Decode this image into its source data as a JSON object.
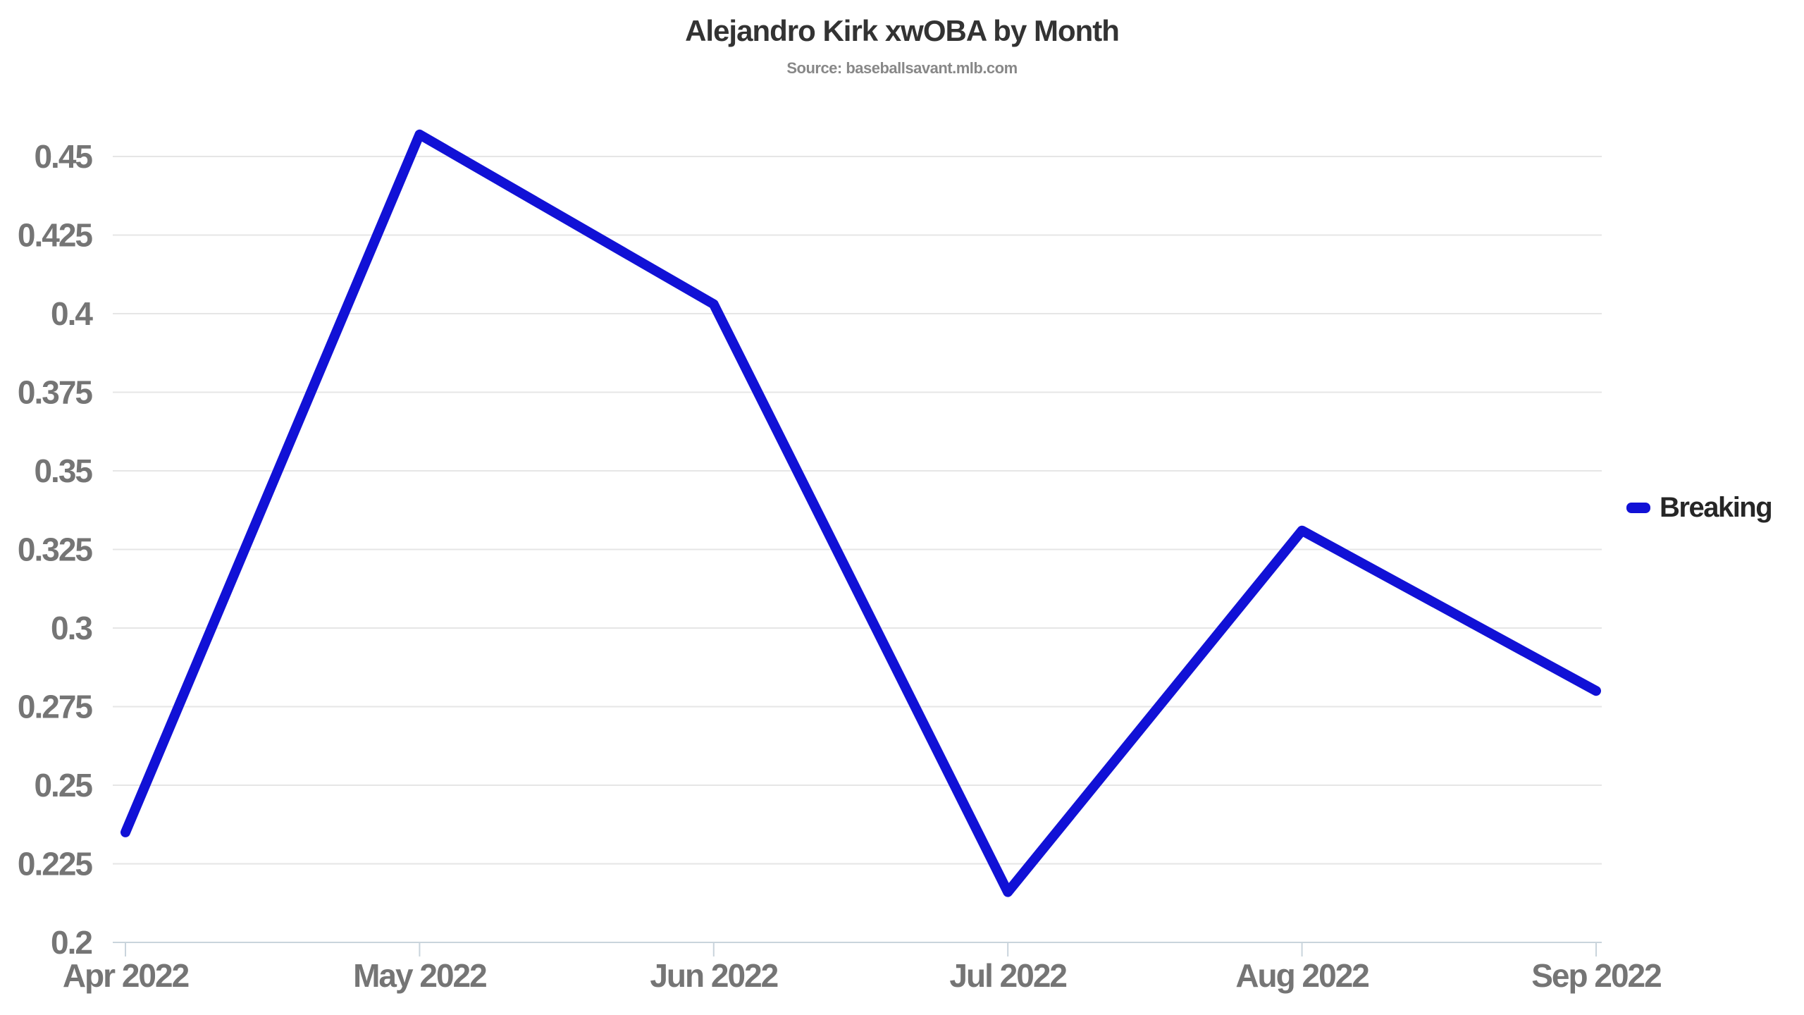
{
  "chart_data": {
    "type": "line",
    "title": "Alejandro Kirk xwOBA by Month",
    "subtitle": "Source: baseballsavant.mlb.com",
    "categories": [
      "Apr 2022",
      "May 2022",
      "Jun 2022",
      "Jul 2022",
      "Aug 2022",
      "Sep 2022"
    ],
    "series": [
      {
        "name": "Breaking",
        "color": "#1111d6",
        "values": [
          0.235,
          0.457,
          0.403,
          0.216,
          0.331,
          0.28
        ]
      }
    ],
    "xlabel": "",
    "ylabel": "",
    "ylim": [
      0.2,
      0.475
    ],
    "ytick_values": [
      0.2,
      0.225,
      0.25,
      0.275,
      0.3,
      0.325,
      0.35,
      0.375,
      0.4,
      0.425,
      0.45
    ],
    "ytick_labels": [
      "0.2",
      "0.225",
      "0.25",
      "0.275",
      "0.3",
      "0.325",
      "0.35",
      "0.375",
      "0.4",
      "0.425",
      "0.45"
    ],
    "grid": true,
    "legend_position": "right"
  },
  "colors": {
    "line": "#1111d6",
    "gridline": "#e6e6e6",
    "axis_line": "#c9d4dc",
    "tick_mark": "#c9d4dc",
    "axis_label": "#757575",
    "title": "#333333",
    "subtitle": "#888888",
    "legend_text": "#262626",
    "background": "#ffffff"
  }
}
